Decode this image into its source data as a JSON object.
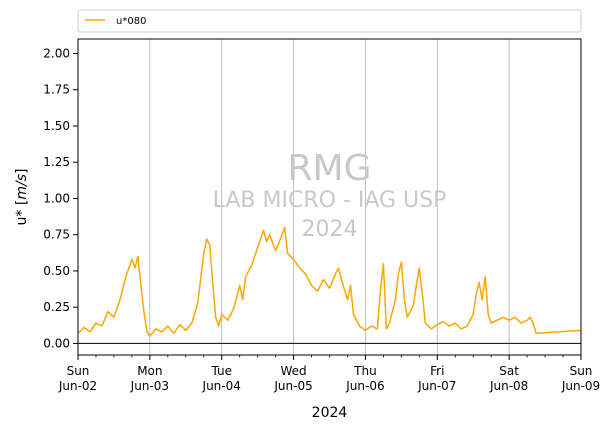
{
  "chart_data": {
    "type": "line",
    "title": "",
    "xlabel": "2024",
    "ylabel_prefix": "u* [",
    "ylabel_unit": "m/s",
    "ylabel_suffix": "]",
    "ylim": [
      -0.08,
      2.1
    ],
    "yticks": [
      "0.00",
      "0.25",
      "0.50",
      "0.75",
      "1.00",
      "1.25",
      "1.50",
      "1.75",
      "2.00"
    ],
    "xlim": [
      "2024-06-02",
      "2024-06-09"
    ],
    "xticks": [
      {
        "day": "Sun",
        "date": "Jun-02"
      },
      {
        "day": "Mon",
        "date": "Jun-03"
      },
      {
        "day": "Tue",
        "date": "Jun-04"
      },
      {
        "day": "Wed",
        "date": "Jun-05"
      },
      {
        "day": "Thu",
        "date": "Jun-06"
      },
      {
        "day": "Fri",
        "date": "Jun-07"
      },
      {
        "day": "Sat",
        "date": "Jun-08"
      },
      {
        "day": "Sun",
        "date": "Jun-09"
      }
    ],
    "grid": "vertical lines at day ticks",
    "legend_placement": "above plot",
    "watermark": [
      "RMG",
      "LAB MICRO - IAG USP",
      "2024"
    ],
    "series": [
      {
        "name": "u*080",
        "color": "#FFA500",
        "points": [
          [
            "2024-06-02 00:00",
            0.07
          ],
          [
            "2024-06-02 02:00",
            0.11
          ],
          [
            "2024-06-02 04:00",
            0.08
          ],
          [
            "2024-06-02 06:00",
            0.14
          ],
          [
            "2024-06-02 08:00",
            0.12
          ],
          [
            "2024-06-02 10:00",
            0.22
          ],
          [
            "2024-06-02 12:00",
            0.18
          ],
          [
            "2024-06-02 14:00",
            0.3
          ],
          [
            "2024-06-02 16:00",
            0.46
          ],
          [
            "2024-06-02 18:00",
            0.58
          ],
          [
            "2024-06-02 19:00",
            0.52
          ],
          [
            "2024-06-02 20:00",
            0.6
          ],
          [
            "2024-06-02 21:00",
            0.4
          ],
          [
            "2024-06-02 22:00",
            0.22
          ],
          [
            "2024-06-02 23:00",
            0.08
          ],
          [
            "2024-06-03 00:00",
            0.05
          ],
          [
            "2024-06-03 02:00",
            0.1
          ],
          [
            "2024-06-03 04:00",
            0.08
          ],
          [
            "2024-06-03 06:00",
            0.12
          ],
          [
            "2024-06-03 08:00",
            0.07
          ],
          [
            "2024-06-03 10:00",
            0.13
          ],
          [
            "2024-06-03 12:00",
            0.09
          ],
          [
            "2024-06-03 14:00",
            0.14
          ],
          [
            "2024-06-03 16:00",
            0.28
          ],
          [
            "2024-06-03 17:00",
            0.45
          ],
          [
            "2024-06-03 18:00",
            0.62
          ],
          [
            "2024-06-03 19:00",
            0.72
          ],
          [
            "2024-06-03 20:00",
            0.68
          ],
          [
            "2024-06-03 21:00",
            0.42
          ],
          [
            "2024-06-03 22:00",
            0.18
          ],
          [
            "2024-06-03 23:00",
            0.12
          ],
          [
            "2024-06-04 00:00",
            0.2
          ],
          [
            "2024-06-04 02:00",
            0.16
          ],
          [
            "2024-06-04 04:00",
            0.24
          ],
          [
            "2024-06-04 06:00",
            0.4
          ],
          [
            "2024-06-04 07:00",
            0.3
          ],
          [
            "2024-06-04 08:00",
            0.46
          ],
          [
            "2024-06-04 10:00",
            0.54
          ],
          [
            "2024-06-04 12:00",
            0.66
          ],
          [
            "2024-06-04 14:00",
            0.78
          ],
          [
            "2024-06-04 15:00",
            0.7
          ],
          [
            "2024-06-04 16:00",
            0.75
          ],
          [
            "2024-06-04 18:00",
            0.64
          ],
          [
            "2024-06-04 20:00",
            0.74
          ],
          [
            "2024-06-04 21:00",
            0.8
          ],
          [
            "2024-06-04 22:00",
            0.62
          ],
          [
            "2024-06-05 00:00",
            0.58
          ],
          [
            "2024-06-05 02:00",
            0.52
          ],
          [
            "2024-06-05 04:00",
            0.48
          ],
          [
            "2024-06-05 06:00",
            0.4
          ],
          [
            "2024-06-05 08:00",
            0.36
          ],
          [
            "2024-06-05 10:00",
            0.44
          ],
          [
            "2024-06-05 12:00",
            0.38
          ],
          [
            "2024-06-05 14:00",
            0.48
          ],
          [
            "2024-06-05 15:00",
            0.52
          ],
          [
            "2024-06-05 16:00",
            0.44
          ],
          [
            "2024-06-05 18:00",
            0.3
          ],
          [
            "2024-06-05 19:00",
            0.4
          ],
          [
            "2024-06-05 20:00",
            0.2
          ],
          [
            "2024-06-05 22:00",
            0.12
          ],
          [
            "2024-06-06 00:00",
            0.09
          ],
          [
            "2024-06-06 02:00",
            0.12
          ],
          [
            "2024-06-06 04:00",
            0.1
          ],
          [
            "2024-06-06 05:00",
            0.36
          ],
          [
            "2024-06-06 06:00",
            0.55
          ],
          [
            "2024-06-06 07:00",
            0.1
          ],
          [
            "2024-06-06 08:00",
            0.14
          ],
          [
            "2024-06-06 10:00",
            0.3
          ],
          [
            "2024-06-06 11:00",
            0.48
          ],
          [
            "2024-06-06 12:00",
            0.56
          ],
          [
            "2024-06-06 13:00",
            0.3
          ],
          [
            "2024-06-06 14:00",
            0.18
          ],
          [
            "2024-06-06 16:00",
            0.26
          ],
          [
            "2024-06-06 17:00",
            0.4
          ],
          [
            "2024-06-06 18:00",
            0.52
          ],
          [
            "2024-06-06 19:00",
            0.34
          ],
          [
            "2024-06-06 20:00",
            0.14
          ],
          [
            "2024-06-06 22:00",
            0.1
          ],
          [
            "2024-06-07 00:00",
            0.13
          ],
          [
            "2024-06-07 02:00",
            0.15
          ],
          [
            "2024-06-07 04:00",
            0.12
          ],
          [
            "2024-06-07 06:00",
            0.14
          ],
          [
            "2024-06-07 08:00",
            0.1
          ],
          [
            "2024-06-07 10:00",
            0.12
          ],
          [
            "2024-06-07 12:00",
            0.2
          ],
          [
            "2024-06-07 13:00",
            0.34
          ],
          [
            "2024-06-07 14:00",
            0.42
          ],
          [
            "2024-06-07 15:00",
            0.3
          ],
          [
            "2024-06-07 16:00",
            0.46
          ],
          [
            "2024-06-07 17:00",
            0.2
          ],
          [
            "2024-06-07 18:00",
            0.14
          ],
          [
            "2024-06-07 20:00",
            0.16
          ],
          [
            "2024-06-07 22:00",
            0.18
          ],
          [
            "2024-06-08 00:00",
            0.16
          ],
          [
            "2024-06-08 02:00",
            0.18
          ],
          [
            "2024-06-08 04:00",
            0.14
          ],
          [
            "2024-06-08 06:00",
            0.16
          ],
          [
            "2024-06-08 07:00",
            0.18
          ],
          [
            "2024-06-08 08:00",
            0.14
          ],
          [
            "2024-06-08 09:00",
            0.07
          ],
          [
            "2024-06-09 00:00",
            0.09
          ]
        ]
      }
    ]
  }
}
